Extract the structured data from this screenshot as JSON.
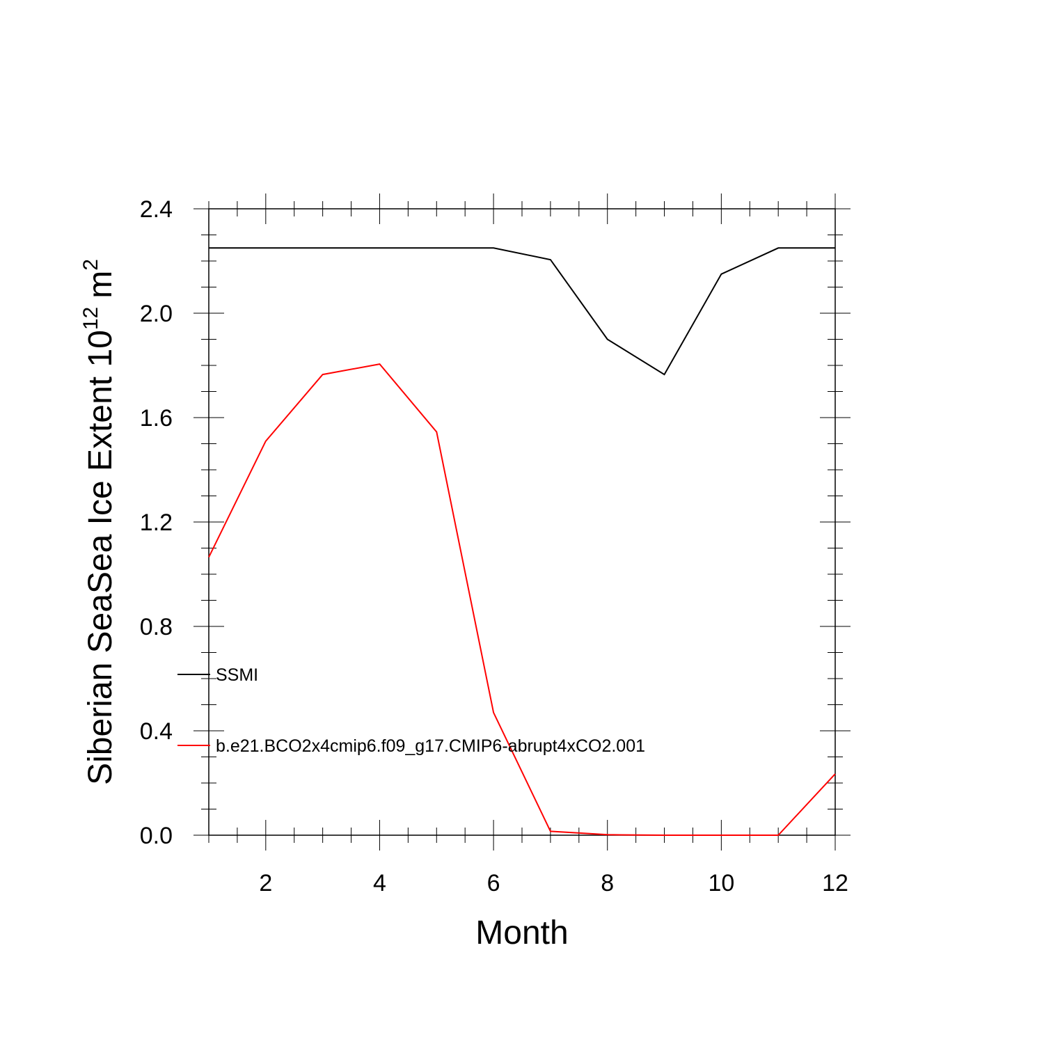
{
  "chart_data": {
    "type": "line",
    "xlabel": "Month",
    "ylabel": "Siberian SeaSea Ice Extent 10",
    "ylabel_exponent": "12",
    "ylabel_unit": "m",
    "ylabel_unit_exponent": "2",
    "xlim": [
      1,
      12
    ],
    "ylim": [
      0.0,
      2.4
    ],
    "x_major_ticks": [
      2,
      4,
      6,
      8,
      10,
      12
    ],
    "x_tick_labels": [
      "2",
      "4",
      "6",
      "8",
      "10",
      "12"
    ],
    "y_major_ticks": [
      0.0,
      0.4,
      0.8,
      1.2,
      1.6,
      2.0,
      2.4
    ],
    "y_tick_labels": [
      "0.0",
      "0.4",
      "0.8",
      "1.2",
      "1.6",
      "2.0",
      "2.4"
    ],
    "grid": false,
    "legend_placement": "lower-left",
    "x": [
      1,
      2,
      3,
      4,
      5,
      6,
      7,
      8,
      9,
      10,
      11,
      12
    ],
    "series": [
      {
        "name": "SSMI",
        "color": "#000000",
        "values": [
          2.25,
          2.25,
          2.25,
          2.25,
          2.25,
          2.25,
          2.205,
          1.9,
          1.765,
          2.15,
          2.25,
          2.25
        ]
      },
      {
        "name": "b.e21.BCO2x4cmip6.f09_g17.CMIP6-abrupt4xCO2.001",
        "color": "#ff0000",
        "values": [
          1.065,
          1.51,
          1.765,
          1.805,
          1.545,
          0.47,
          0.015,
          0.002,
          0.0,
          0.0,
          0.0,
          0.235
        ]
      }
    ]
  }
}
